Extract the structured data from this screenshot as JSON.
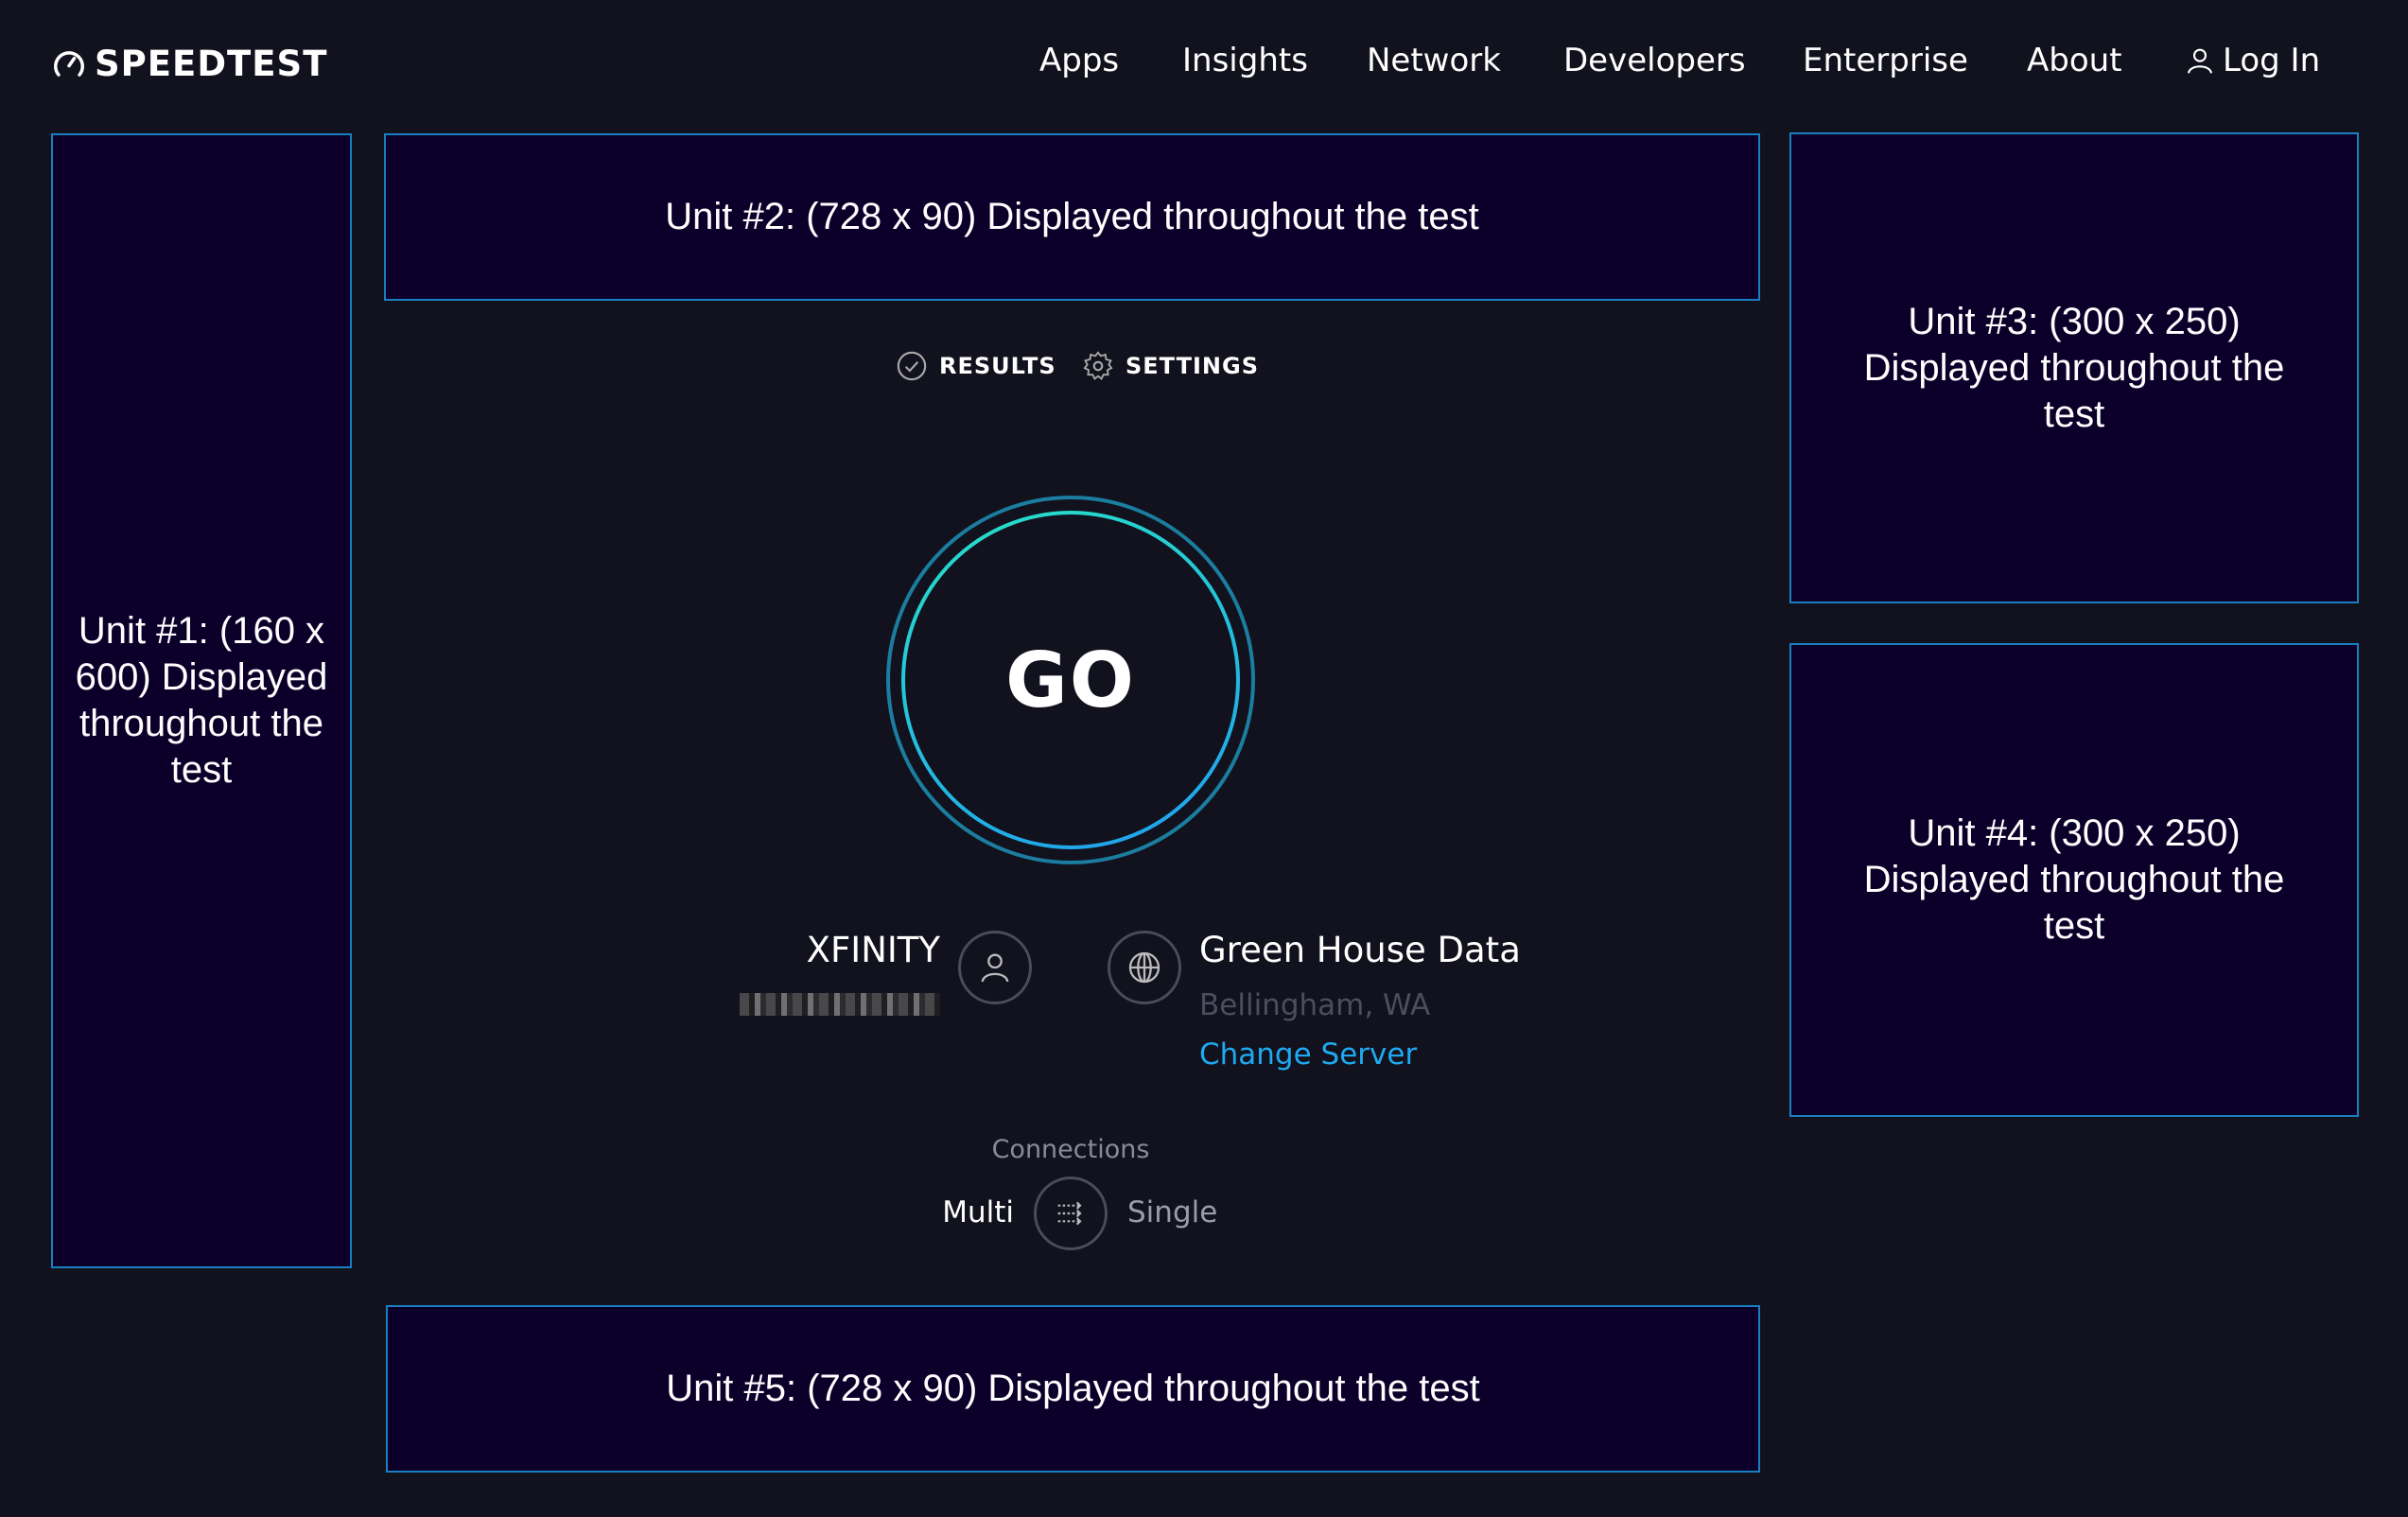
{
  "header": {
    "logo": "SPEEDTEST",
    "nav": [
      "Apps",
      "Insights",
      "Network",
      "Developers",
      "Enterprise",
      "About"
    ],
    "login": "Log In"
  },
  "ads": {
    "unit1": "Unit #1: (160 x 600) Displayed throughout the test",
    "unit2": "Unit #2: (728 x 90) Displayed throughout the test",
    "unit3": "Unit #3: (300 x 250) Displayed throughout the test",
    "unit4": "Unit #4: (300 x 250) Displayed throughout the test",
    "unit5": "Unit #5: (728 x 90) Displayed throughout the test"
  },
  "tabs": {
    "results": "RESULTS",
    "settings": "SETTINGS"
  },
  "go": "GO",
  "isp": {
    "name": "XFINITY"
  },
  "server": {
    "name": "Green House Data",
    "location": "Bellingham, WA",
    "change": "Change Server"
  },
  "connections": {
    "label": "Connections",
    "multi": "Multi",
    "single": "Single"
  },
  "colors": {
    "background": "#11121d",
    "accent": "#1fa9f0",
    "ad_fill": "#0c002a",
    "ad_border": "#1a7fc0"
  }
}
